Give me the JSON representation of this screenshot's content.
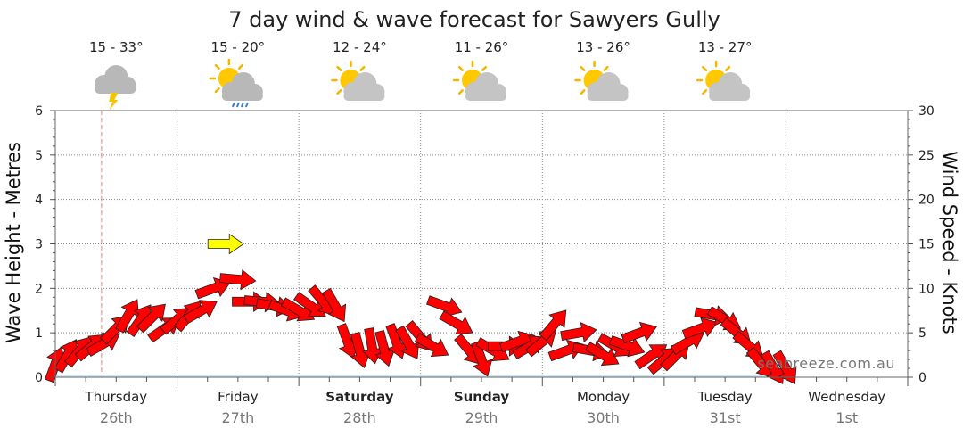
{
  "chart_data": {
    "type": "line",
    "title": "7 day wind & wave forecast for Sawyers Gully",
    "ylabel": "Wave Height - Metres",
    "y2label": "Wind Speed - Knots",
    "ylim": [
      0,
      6
    ],
    "y2lim": [
      0,
      30
    ],
    "yticks": [
      "0",
      "1",
      "2",
      "3",
      "4",
      "5",
      "6"
    ],
    "y2ticks": [
      "0",
      "5",
      "10",
      "15",
      "20",
      "25",
      "30"
    ],
    "grid": true,
    "days": [
      {
        "name": "Thursday",
        "date": "26th",
        "temp": "15 - 33°",
        "icon": "storm-cloud-icon",
        "bold": false
      },
      {
        "name": "Friday",
        "date": "27th",
        "temp": "15 - 20°",
        "icon": "sun-rain-cloud-icon",
        "bold": false
      },
      {
        "name": "Saturday",
        "date": "28th",
        "temp": "12 - 24°",
        "icon": "partly-cloudy-icon",
        "bold": true
      },
      {
        "name": "Sunday",
        "date": "29th",
        "temp": "11 - 26°",
        "icon": "partly-cloudy-icon",
        "bold": true
      },
      {
        "name": "Monday",
        "date": "30th",
        "temp": "13 - 26°",
        "icon": "partly-cloudy-icon",
        "bold": false
      },
      {
        "name": "Tuesday",
        "date": "31st",
        "temp": "13 - 27°",
        "icon": "partly-cloudy-icon",
        "bold": false
      },
      {
        "name": "Wednesday",
        "date": "1st",
        "temp": "",
        "icon": "",
        "bold": false
      }
    ],
    "current_time_day": 0.38,
    "wind_series": {
      "name": "Wind Speed",
      "day_offset": [
        0.0,
        0.1,
        0.2,
        0.3,
        0.4,
        0.5,
        0.6,
        0.7,
        0.8,
        0.9,
        1.0,
        1.1,
        1.2,
        1.3,
        1.4,
        1.5,
        1.6,
        1.7,
        1.8,
        1.9,
        2.0,
        2.1,
        2.2,
        2.3,
        2.4,
        2.5,
        2.6,
        2.7,
        2.8,
        2.9,
        3.0,
        3.1,
        3.2,
        3.3,
        3.4,
        3.5,
        3.6,
        3.7,
        3.8,
        3.9,
        4.0,
        4.1,
        4.2,
        4.3,
        4.4,
        4.5,
        4.6,
        4.7,
        4.8,
        4.9,
        5.0,
        5.1,
        5.2,
        5.3,
        5.4,
        5.5,
        5.6,
        5.7,
        5.8,
        5.9,
        6.0
      ],
      "knots": [
        1.5,
        2.5,
        3.0,
        3.5,
        3.8,
        5.5,
        7.0,
        6.5,
        6.8,
        5.5,
        6.5,
        7.0,
        7.5,
        10.0,
        15.0,
        11.0,
        8.5,
        8.5,
        8.0,
        7.5,
        7.5,
        8.0,
        8.5,
        8.0,
        4.0,
        3.0,
        3.5,
        3.2,
        4.0,
        3.8,
        4.5,
        3.5,
        8.0,
        6.0,
        3.0,
        2.0,
        3.0,
        3.5,
        4.0,
        3.5,
        4.0,
        6.0,
        3.0,
        5.0,
        3.0,
        2.5,
        3.5,
        3.5,
        5.0,
        2.5,
        2.0,
        2.5,
        4.0,
        5.5,
        7.0,
        6.5,
        5.0,
        3.5,
        1.5,
        1.0,
        1.0
      ],
      "direction_deg": [
        200,
        210,
        220,
        230,
        240,
        225,
        210,
        215,
        225,
        235,
        230,
        220,
        240,
        250,
        270,
        275,
        270,
        275,
        280,
        290,
        300,
        305,
        320,
        330,
        340,
        345,
        350,
        345,
        340,
        330,
        320,
        300,
        290,
        300,
        320,
        340,
        300,
        270,
        250,
        240,
        230,
        220,
        250,
        260,
        280,
        300,
        300,
        290,
        250,
        235,
        230,
        225,
        240,
        250,
        280,
        300,
        310,
        310,
        320,
        330,
        330
      ]
    },
    "wave_series": {
      "name": "Wave Height",
      "day_offset": [
        0.0,
        1.0,
        2.0,
        3.0,
        4.0,
        5.0,
        6.0
      ],
      "metres": [
        0.05,
        0.05,
        0.05,
        0.05,
        0.05,
        0.05,
        0.05
      ]
    }
  },
  "branding": "seabreeze.com.au"
}
